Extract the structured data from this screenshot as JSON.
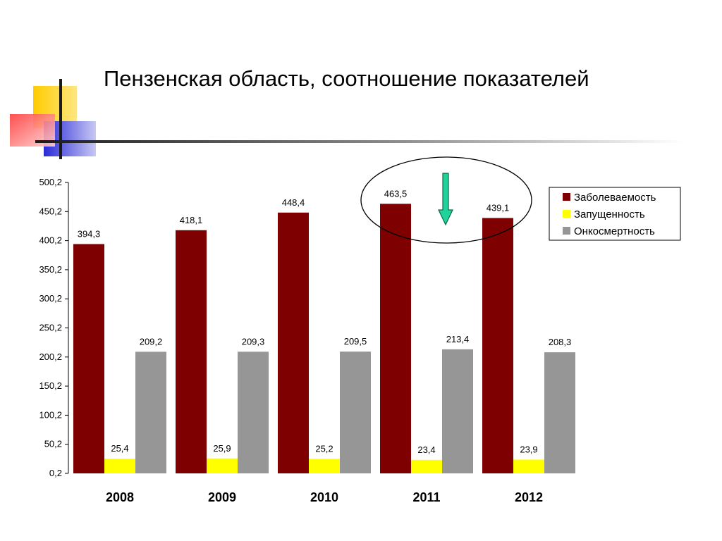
{
  "slide": {
    "title": "Пензенская область, соотношение показателей"
  },
  "chart_data": {
    "type": "bar",
    "categories": [
      "2008",
      "2009",
      "2010",
      "2011",
      "2012"
    ],
    "series": [
      {
        "name": "Заболеваемость",
        "color": "#7f0000",
        "values": [
          394.3,
          418.1,
          448.4,
          463.5,
          439.1
        ],
        "labels": [
          "394,3",
          "418,1",
          "448,4",
          "463,5",
          "439,1"
        ]
      },
      {
        "name": "Запущенность",
        "color": "#ffff00",
        "values": [
          25.4,
          25.9,
          25.2,
          23.4,
          23.9
        ],
        "labels": [
          "25,4",
          "25,9",
          "25,2",
          "23,4",
          "23,9"
        ]
      },
      {
        "name": "Онкосмертность",
        "color": "#969696",
        "values": [
          209.2,
          209.3,
          209.5,
          213.4,
          208.3
        ],
        "labels": [
          "209,2",
          "209,3",
          "209,5",
          "213,4",
          "208,3"
        ]
      }
    ],
    "ylim": [
      0.2,
      500.2
    ],
    "yticks": [
      "0,2",
      "50,2",
      "100,2",
      "150,2",
      "200,2",
      "250,2",
      "300,2",
      "350,2",
      "400,2",
      "450,2",
      "500,2"
    ],
    "legend_position": "top-right",
    "grid": false,
    "annotations": [
      "ellipse-around-2011-incidence",
      "green-down-arrow"
    ]
  }
}
